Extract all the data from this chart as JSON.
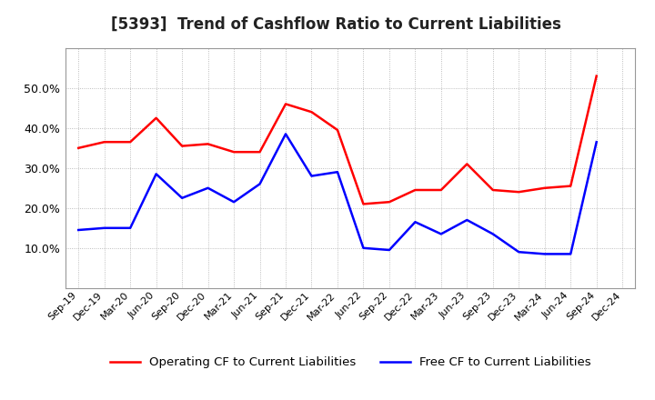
{
  "title": "[5393]  Trend of Cashflow Ratio to Current Liabilities",
  "x_labels": [
    "Sep-19",
    "Dec-19",
    "Mar-20",
    "Jun-20",
    "Sep-20",
    "Dec-20",
    "Mar-21",
    "Jun-21",
    "Sep-21",
    "Dec-21",
    "Mar-22",
    "Jun-22",
    "Sep-22",
    "Dec-22",
    "Mar-23",
    "Jun-23",
    "Sep-23",
    "Dec-23",
    "Mar-24",
    "Jun-24",
    "Sep-24",
    "Dec-24"
  ],
  "operating_cf": [
    35.0,
    36.5,
    36.5,
    42.5,
    35.5,
    36.0,
    34.0,
    34.0,
    46.0,
    44.0,
    39.5,
    21.0,
    21.5,
    24.5,
    24.5,
    31.0,
    24.5,
    24.0,
    25.0,
    25.5,
    53.0,
    null
  ],
  "free_cf": [
    14.5,
    15.0,
    15.0,
    28.5,
    22.5,
    25.0,
    21.5,
    26.0,
    38.5,
    28.0,
    29.0,
    10.0,
    9.5,
    16.5,
    13.5,
    17.0,
    13.5,
    9.0,
    8.5,
    8.5,
    36.5,
    null
  ],
  "operating_color": "#ff0000",
  "free_color": "#0000ff",
  "ylim_min": 0,
  "ylim_max": 60,
  "yticks": [
    10.0,
    20.0,
    30.0,
    40.0,
    50.0
  ],
  "background_color": "#ffffff",
  "grid_color": "#888888",
  "legend_labels": [
    "Operating CF to Current Liabilities",
    "Free CF to Current Liabilities"
  ]
}
